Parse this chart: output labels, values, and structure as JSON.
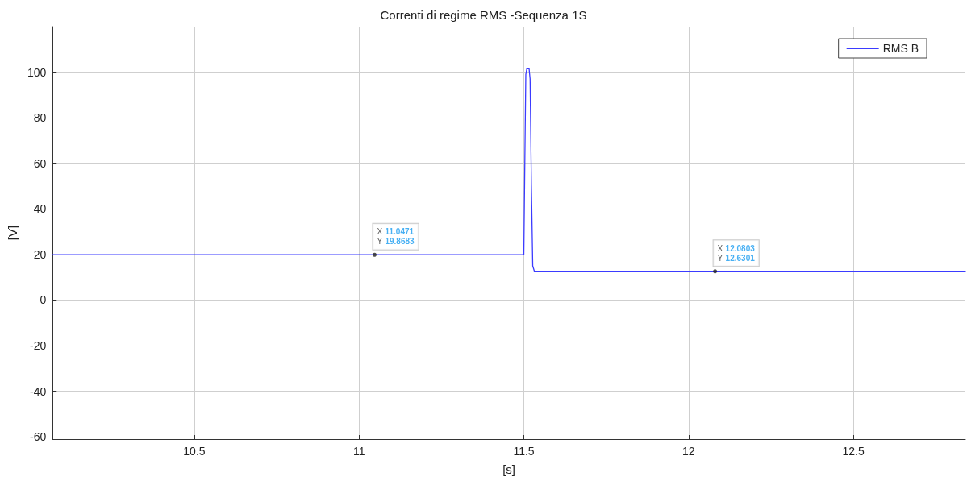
{
  "chart_data": {
    "type": "line",
    "title": "Correnti di regime RMS -Sequenza 1S",
    "xlabel": "[s]",
    "ylabel": "[V]",
    "x": [
      10.07,
      11.5,
      11.503,
      11.506,
      11.509,
      11.516,
      11.519,
      11.523,
      11.527,
      11.532,
      12.84
    ],
    "series": [
      {
        "name": "RMS B",
        "color": "#3b3bff",
        "values": [
          19.87,
          19.87,
          60,
          99,
          101.5,
          101.5,
          97,
          50,
          15,
          12.63,
          12.63
        ]
      }
    ],
    "xlim": [
      10.07,
      12.84
    ],
    "xticks": [
      10.5,
      11,
      11.5,
      12,
      12.5
    ],
    "ylim": [
      -61,
      120
    ],
    "yticks": [
      -60,
      -40,
      -20,
      0,
      20,
      40,
      60,
      80,
      100
    ],
    "grid": true,
    "legend": "top right",
    "marker": "none",
    "line_style": "solid",
    "annotations": [
      {
        "text": "X 11.0471\nY 19.8683",
        "x": 11.0471,
        "y": 19.8683
      },
      {
        "text": "X 12.0803\nY 12.6301",
        "x": 12.0803,
        "y": 12.6301
      }
    ]
  }
}
